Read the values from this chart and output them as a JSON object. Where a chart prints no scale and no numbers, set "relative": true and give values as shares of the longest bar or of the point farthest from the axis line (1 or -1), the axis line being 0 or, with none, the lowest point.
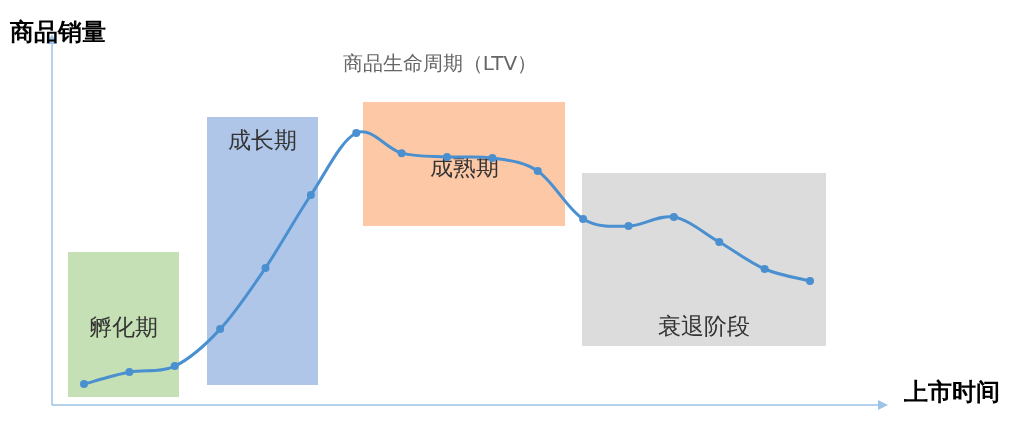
{
  "chart_data": {
    "type": "line",
    "title": "商品生命周期（LTV）",
    "xlabel": "上市时间",
    "ylabel": "商品销量",
    "relative": true,
    "marker": "circle",
    "line_style": "solid",
    "categories": [
      null,
      null,
      null,
      null,
      null,
      null,
      null,
      null,
      null,
      null,
      null,
      null,
      null,
      null,
      null,
      null,
      null
    ],
    "series": [
      {
        "color": "#4a90d0",
        "values": [
          0.077,
          0.121,
          0.143,
          0.279,
          0.504,
          0.772,
          1,
          0.926,
          0.912,
          0.908,
          0.86,
          0.684,
          0.658,
          0.691,
          0.599,
          0.5,
          0.456
        ]
      }
    ],
    "annotations": [
      "孵化期",
      "成长期",
      "成熟期",
      "衰退阶段"
    ]
  }
}
